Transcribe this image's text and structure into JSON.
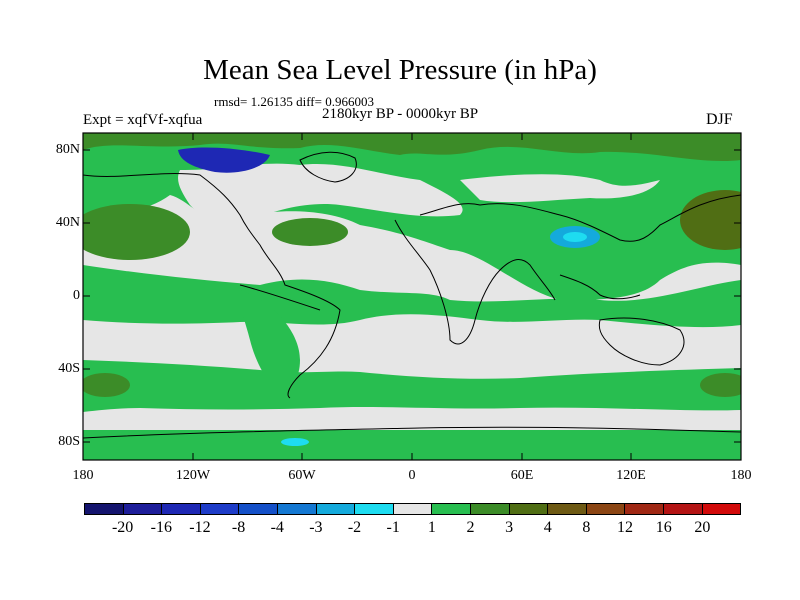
{
  "title": "Mean Sea Level Pressure (in hPa)",
  "stats": "rmsd= 1.26135 diff= 0.966003",
  "period": "2180kyr BP - 0000kyr BP",
  "experiment": "Expt = xqfVf-xqfua",
  "season": "DJF",
  "lat_labels": [
    "80N",
    "40N",
    "0",
    "40S",
    "80S"
  ],
  "lon_labels": [
    "180",
    "120W",
    "60W",
    "0",
    "60E",
    "120E",
    "180"
  ],
  "colorbar": {
    "labels": [
      "-20",
      "-16",
      "-12",
      "-8",
      "-4",
      "-3",
      "-2",
      "-1",
      "1",
      "2",
      "3",
      "4",
      "8",
      "12",
      "16",
      "20"
    ],
    "colors": [
      "#14146e",
      "#1e1e9a",
      "#1e28b4",
      "#1e3cc8",
      "#1450c8",
      "#1478d2",
      "#14aadc",
      "#1edcf0",
      "#e6e6e6",
      "#28be50",
      "#3c8c28",
      "#506e14",
      "#6e5a14",
      "#8c4614",
      "#a02814",
      "#b41414",
      "#d20a0a"
    ]
  },
  "map_colors": {
    "ocean_background": "#e6e6e6",
    "positive_1_2": "#28be50",
    "positive_2_3": "#3c8c28",
    "negative_2_1": "#1edcf0",
    "negative_3_2": "#14aadc",
    "negative_strong": "#1e28b4"
  }
}
